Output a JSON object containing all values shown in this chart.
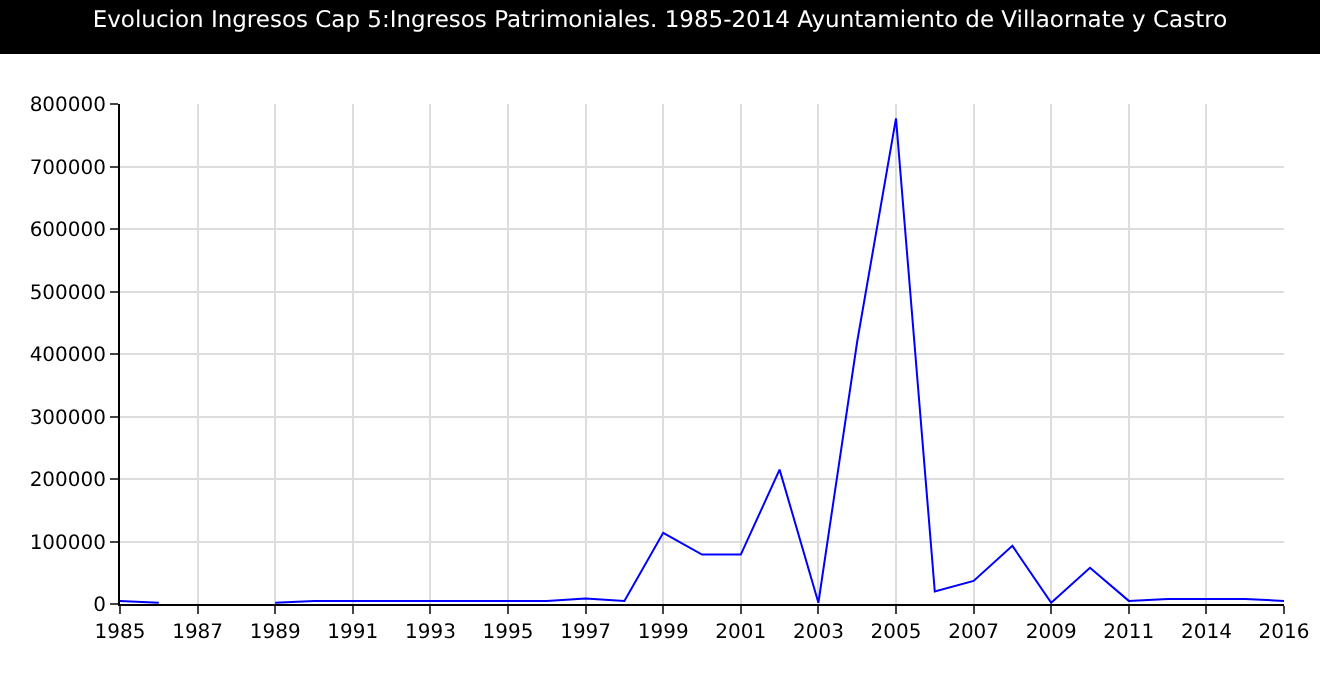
{
  "chart_data": {
    "type": "line",
    "title": "Evolucion Ingresos Cap 5:Ingresos Patrimoniales. 1985-2014 Ayuntamiento de Villaornate y Castro",
    "categories": [
      "1985",
      null,
      "1987",
      null,
      "1989",
      null,
      "1991",
      null,
      "1993",
      null,
      "1995",
      null,
      "1997",
      null,
      "1999",
      null,
      "2001",
      null,
      "2003",
      null,
      "2005",
      null,
      "2007",
      null,
      "2009",
      null,
      "2011",
      null,
      "2014",
      null,
      "2016"
    ],
    "series": [
      {
        "color": "#0000ff",
        "values": [
          5000,
          2000,
          null,
          null,
          2000,
          5000,
          5000,
          5000,
          5000,
          5000,
          5000,
          5000,
          9000,
          5000,
          114000,
          79000,
          79000,
          215000,
          2000,
          420000,
          777000,
          20000,
          37000,
          93000,
          2000,
          58000,
          5000,
          8000,
          8000,
          8000,
          5000
        ]
      }
    ],
    "ylim": [
      0,
      800000
    ],
    "yticks": [
      0,
      100000,
      200000,
      300000,
      400000,
      500000,
      600000,
      700000,
      800000
    ],
    "grid": true,
    "marker": "none",
    "line_style": "solid"
  }
}
